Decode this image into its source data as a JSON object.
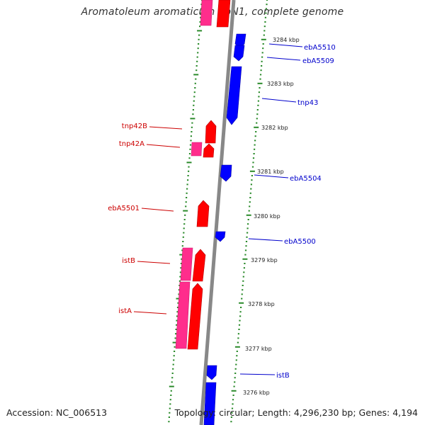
{
  "title": "Aromatoleum aromaticum EbN1, complete genome",
  "footer": {
    "accession": "Accession: NC_006513",
    "topology": "Topology: circular; Length: 4,296,230 bp; Genes: 4,194"
  },
  "colors": {
    "forward_gene": "#ff0000",
    "forward_gene_alt": "#ff2d8c",
    "reverse_gene": "#0000ff",
    "backbone": "#888888",
    "tick": "#2a8a2a"
  },
  "kbp_ticks": [
    "3284 kbp",
    "3283 kbp",
    "3282 kbp",
    "3281 kbp",
    "3280 kbp",
    "3279 kbp",
    "3278 kbp",
    "3277 kbp",
    "3276 kbp"
  ],
  "labels": {
    "left": [
      "tnp42B",
      "tnp42A",
      "ebA5501",
      "istB",
      "istA"
    ],
    "right": [
      "ebA5510",
      "ebA5509",
      "tnp43",
      "ebA5504",
      "ebA5500",
      "istB"
    ]
  }
}
